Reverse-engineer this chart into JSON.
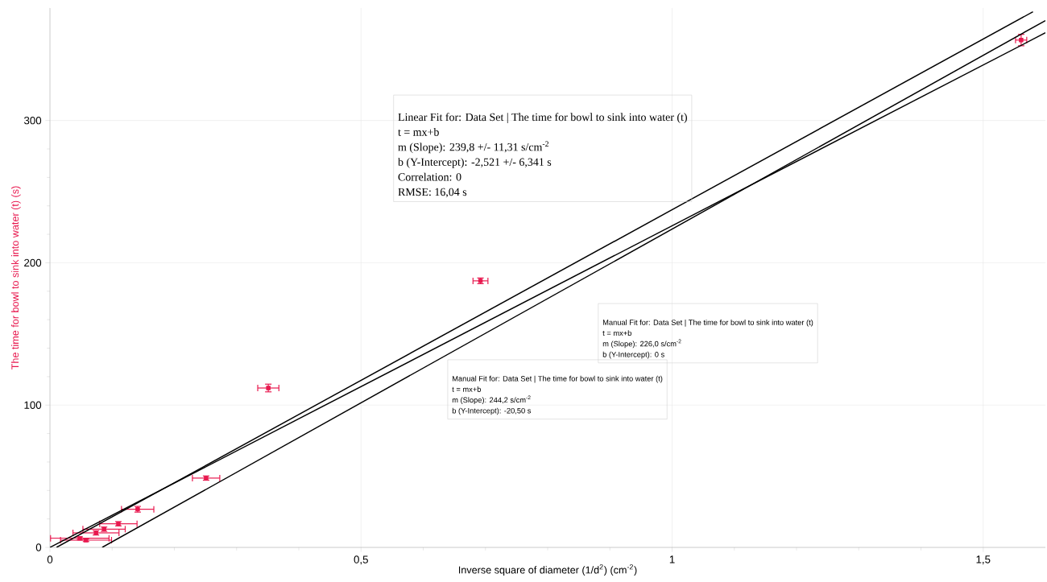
{
  "chart_data": {
    "type": "scatter",
    "xlabel": "Inverse square of diameter (1/d$^{2}$) (cm$^{-2}$)",
    "ylabel": "The time for bowl to sink into water (t)  (s)",
    "xlim": [
      0,
      1.6
    ],
    "ylim": [
      0,
      379
    ],
    "xticks": [
      0,
      {
        "value": 0.5,
        "label": "0,5"
      },
      1,
      {
        "value": 1.5,
        "label": "1,5"
      }
    ],
    "yticks": [
      0,
      100,
      200,
      300
    ],
    "grid": true,
    "series": [
      {
        "color": "#e8194f",
        "marker": "square",
        "x": [
          0.048,
          0.058,
          0.074,
          0.087,
          0.11,
          0.141,
          0.251,
          0.351,
          0.692,
          1.561
        ],
        "values": [
          6.4,
          5.1,
          10.2,
          12.8,
          16.6,
          26.8,
          48.7,
          112,
          187.3,
          356.5
        ],
        "xerrors": [
          0.047,
          0.041,
          0.037,
          0.034,
          0.03,
          0.026,
          0.022,
          0.017,
          0.012,
          0.009
        ],
        "errors": [
          1,
          1,
          1.5,
          1.5,
          1.5,
          2,
          1.5,
          2.7,
          2,
          4
        ]
      },
      {
        "type": "line",
        "color": "#000000",
        "marker": "none",
        "x": [
          0.0106,
          1.58
        ],
        "values": [
          0,
          376.4
        ]
      },
      {
        "type": "line",
        "color": "#000000",
        "marker": "none",
        "x": [
          0,
          1.6
        ],
        "values": [
          0,
          361.6
        ]
      },
      {
        "type": "line",
        "color": "#000000",
        "marker": "none",
        "x": [
          0.084,
          1.6
        ],
        "values": [
          0,
          370.2
        ]
      }
    ],
    "annotations": [
      "Linear Fit for: Data Set | The time for bowl to sink into water (t)",
      "t = mx+b",
      "m (Slope): 239,8 +/- 11,31 s/cm$^{-2}$",
      "b (Y-Intercept): -2,521 +/- 6,341 s",
      "Correlation: 0",
      "RMSE: 16,04 s",
      "Manual Fit for: Data Set | The time for bowl to sink into water (t)",
      "t = mx+b",
      "m (Slope): 226,0 s/cm$^{-2}$",
      "b (Y-Intercept): 0 s",
      "Manual Fit for: Data Set | The time for bowl to sink into water (t)",
      "t = mx+b",
      "m (Slope): 244,2 s/cm$^{-2}$",
      "b (Y-Intercept): -20,50 s"
    ]
  }
}
